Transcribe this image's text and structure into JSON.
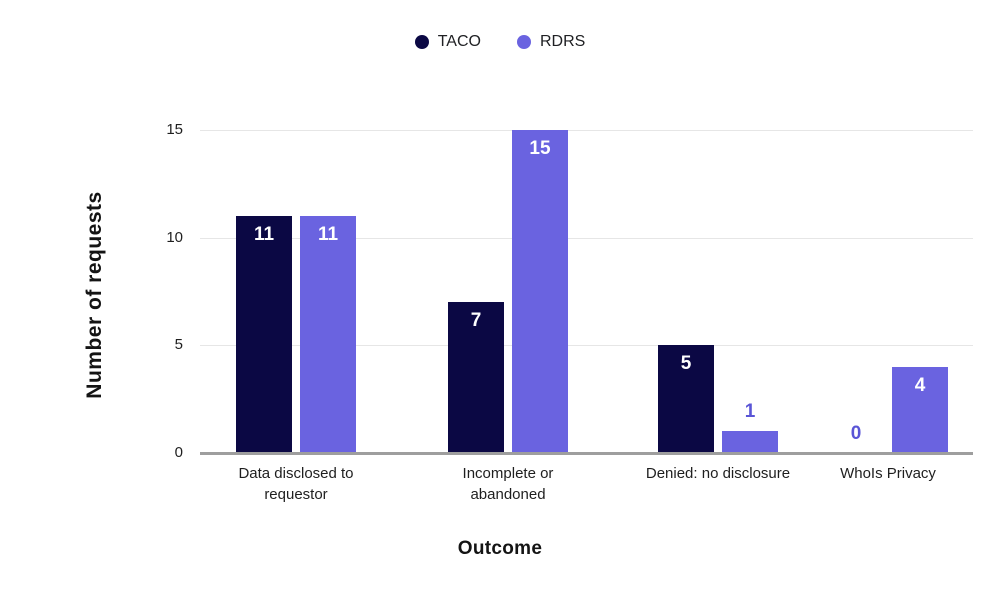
{
  "chart_data": {
    "type": "bar",
    "title": "",
    "categories": [
      "Data disclosed to requestor",
      "Incomplete or abandoned",
      "Denied: no disclosure",
      "WhoIs Privacy"
    ],
    "categories_lines": [
      [
        "Data disclosed to",
        "requestor"
      ],
      [
        "Incomplete or",
        "abandoned"
      ],
      [
        "Denied: no disclosure"
      ],
      [
        "WhoIs Privacy"
      ]
    ],
    "series": [
      {
        "name": "TACO",
        "color": "#0b0844",
        "values": [
          11,
          7,
          5,
          0
        ]
      },
      {
        "name": "RDRS",
        "color": "#6a63e0",
        "values": [
          11,
          15,
          1,
          4
        ]
      }
    ],
    "xlabel": "Outcome",
    "ylabel": "Number of requests",
    "yticks": [
      0,
      5,
      10,
      15
    ],
    "ylim": [
      0,
      15
    ],
    "grid": true,
    "legend_position": "top",
    "value_label_inside_color": "#ffffff",
    "value_label_outside_color": "#5a55d6",
    "gridline_color": "#e6e6e6",
    "baseline_color": "#9e9e9e",
    "background_color": "#ffffff"
  }
}
